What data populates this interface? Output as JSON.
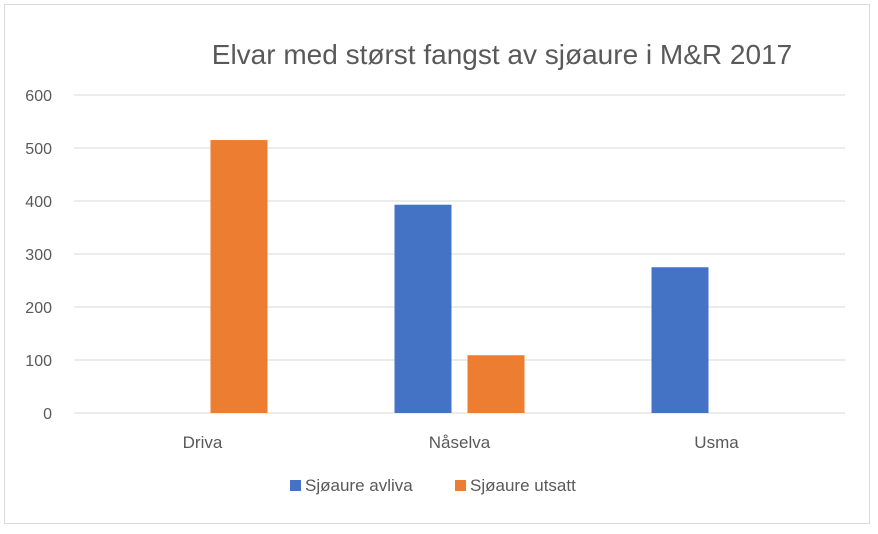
{
  "chart_data": {
    "type": "bar",
    "title": "Elvar med størst fangst av sjøaure i M&R 2017",
    "categories": [
      "Driva",
      "Nåselva",
      "Usma"
    ],
    "series": [
      {
        "name": "Sjøaure avliva",
        "values": [
          0,
          393,
          275
        ],
        "color": "#4472c4"
      },
      {
        "name": "Sjøaure utsatt",
        "values": [
          515,
          109,
          0
        ],
        "color": "#ed7d31"
      }
    ],
    "y_ticks": [
      "0",
      "100",
      "200",
      "300",
      "400",
      "500",
      "600"
    ],
    "ylim": [
      0,
      600
    ],
    "xlabel": "",
    "ylabel": "",
    "grid": true,
    "legend_position": "bottom"
  }
}
